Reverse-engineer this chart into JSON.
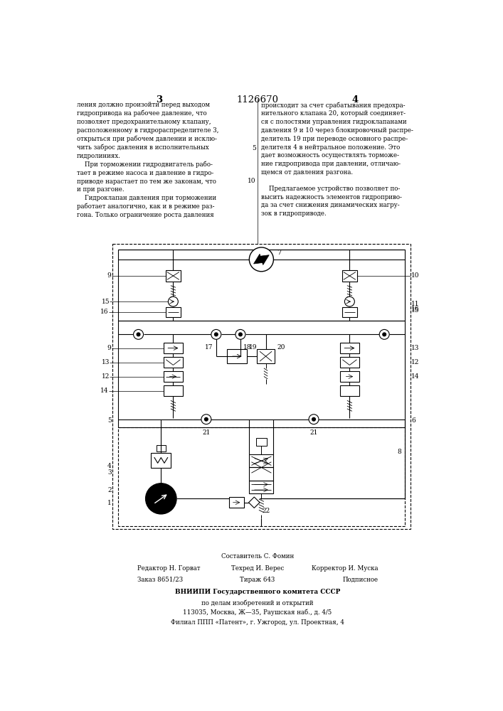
{
  "page_width": 7.07,
  "page_height": 10.0,
  "bg_color": "#ffffff",
  "patent_number": "1126670",
  "page_num_left": "3",
  "page_num_right": "4",
  "text_col1": "ления должно произойти перед выходом\nгидропривода на рабочее давление, что\nпозволяет предохранительному клапану,\nрасположенному в гидрораспределителе 3,\nоткрыться при рабочем давлении и исклю-\nчить заброс давления в исполнительных\nгидролиниях.\n    При торможении гидродвигатель рабо-\nтает в режиме насоса и давление в гидро-\nприводе нарастает по тем же законам, что\nи при разгоне.\n    Гидроклапан давления при торможении\nработает аналогично, как и в режиме раз-\nгона. Только ограничение роста давления",
  "text_col2": "происходит за счет срабатывания предохра-\nнительного клапана 20, который соединяет-\nся с полостями управления гидроклапанами\nдавления 9 и 10 через блокировочный распре-\nделитель 19 при переводе основного распре-\nделителя 4 в нейтральное положение. Это\nдает возможность осуществлять торможе-\nние гидропривода при давлении, отличаю-\nщемся от давления разгона.\n\n    Предлагаемое устройство позволяет по-\nвысить надежность элементов гидроприво-\nда за счет снижения динамических нагру-\nзок в гидроприводе.",
  "footer_author": "Составитель С. Фомин",
  "footer_editor_left": "Редактор Н. Горват",
  "footer_tech_mid": "Техред И. Верес",
  "footer_corr_right": "Корректор И. Муска",
  "footer_order_left": "Заказ 8651/23",
  "footer_circ_mid": "Тираж 643",
  "footer_sub_right": "Подписное",
  "footer_vniip": "ВНИИПИ Государственного комитета СССР",
  "footer_affairs": "по делам изобретений и открытий",
  "footer_address": "113035, Москва, Ж—35, Раушская наб., д. 4/5",
  "footer_branch": "Филиал ППП «Патент», г. Ужгород, ул. Проектная, 4"
}
